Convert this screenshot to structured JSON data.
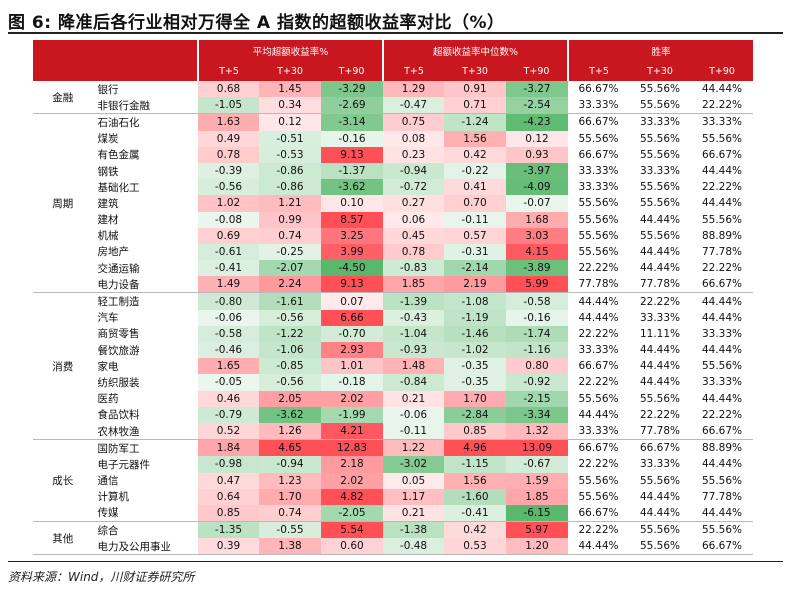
{
  "title": "图 6:   降准后各行业相对万得全 A 指数的超额收益率对比（%）",
  "source": "资料来源：Wind，川财证券研究所",
  "headers": {
    "group1": "平均超额收益率%",
    "group2": "超额收益率中位数%",
    "group3": "胜率",
    "periods": [
      "T+5",
      "T+30",
      "T+90"
    ]
  },
  "colors": {
    "header_red": "#c8171e",
    "positive_red": "#e8343c",
    "negative_green": "#3aa655"
  },
  "groups": [
    {
      "name": "金融",
      "rows": [
        {
          "industry": "银行",
          "avg": [
            "0.68",
            "1.45",
            "-3.29"
          ],
          "med": [
            "1.29",
            "0.91",
            "-3.27"
          ],
          "win": [
            "66.67%",
            "55.56%",
            "44.44%"
          ]
        },
        {
          "industry": "非银行金融",
          "avg": [
            "-1.05",
            "0.34",
            "-2.69"
          ],
          "med": [
            "-0.47",
            "0.71",
            "-2.54"
          ],
          "win": [
            "33.33%",
            "55.56%",
            "22.22%"
          ]
        }
      ]
    },
    {
      "name": "周期",
      "rows": [
        {
          "industry": "石油石化",
          "avg": [
            "1.63",
            "0.12",
            "-3.14"
          ],
          "med": [
            "0.75",
            "-1.24",
            "-4.23"
          ],
          "win": [
            "66.67%",
            "33.33%",
            "33.33%"
          ]
        },
        {
          "industry": "煤炭",
          "avg": [
            "0.49",
            "-0.51",
            "-0.16"
          ],
          "med": [
            "0.08",
            "1.56",
            "0.12"
          ],
          "win": [
            "55.56%",
            "55.56%",
            "55.56%"
          ]
        },
        {
          "industry": "有色金属",
          "avg": [
            "0.78",
            "-0.53",
            "9.13"
          ],
          "med": [
            "0.23",
            "0.42",
            "0.93"
          ],
          "win": [
            "66.67%",
            "55.56%",
            "66.67%"
          ]
        },
        {
          "industry": "钢铁",
          "avg": [
            "-0.39",
            "-0.86",
            "-1.37"
          ],
          "med": [
            "-0.94",
            "-0.22",
            "-3.97"
          ],
          "win": [
            "33.33%",
            "33.33%",
            "44.44%"
          ]
        },
        {
          "industry": "基础化工",
          "avg": [
            "-0.56",
            "-0.86",
            "-3.62"
          ],
          "med": [
            "-0.72",
            "0.41",
            "-4.09"
          ],
          "win": [
            "33.33%",
            "55.56%",
            "22.22%"
          ]
        },
        {
          "industry": "建筑",
          "avg": [
            "1.02",
            "1.21",
            "0.10"
          ],
          "med": [
            "0.27",
            "0.70",
            "-0.07"
          ],
          "win": [
            "55.56%",
            "55.56%",
            "44.44%"
          ]
        },
        {
          "industry": "建材",
          "avg": [
            "-0.08",
            "0.99",
            "8.57"
          ],
          "med": [
            "0.06",
            "-0.11",
            "1.68"
          ],
          "win": [
            "55.56%",
            "44.44%",
            "55.56%"
          ]
        },
        {
          "industry": "机械",
          "avg": [
            "0.69",
            "0.74",
            "3.25"
          ],
          "med": [
            "0.45",
            "0.57",
            "3.03"
          ],
          "win": [
            "55.56%",
            "55.56%",
            "88.89%"
          ]
        },
        {
          "industry": "房地产",
          "avg": [
            "-0.61",
            "-0.25",
            "3.99"
          ],
          "med": [
            "0.78",
            "-0.31",
            "4.15"
          ],
          "win": [
            "55.56%",
            "44.44%",
            "77.78%"
          ]
        },
        {
          "industry": "交通运输",
          "avg": [
            "-0.41",
            "-2.07",
            "-4.50"
          ],
          "med": [
            "-0.83",
            "-2.14",
            "-3.89"
          ],
          "win": [
            "22.22%",
            "44.44%",
            "22.22%"
          ]
        },
        {
          "industry": "电力设备",
          "avg": [
            "1.49",
            "2.24",
            "9.13"
          ],
          "med": [
            "1.85",
            "2.19",
            "5.99"
          ],
          "win": [
            "77.78%",
            "77.78%",
            "66.67%"
          ]
        }
      ]
    },
    {
      "name": "消费",
      "rows": [
        {
          "industry": "轻工制造",
          "avg": [
            "-0.80",
            "-1.61",
            "0.07"
          ],
          "med": [
            "-1.39",
            "-1.08",
            "-0.58"
          ],
          "win": [
            "44.44%",
            "22.22%",
            "44.44%"
          ]
        },
        {
          "industry": "汽车",
          "avg": [
            "-0.06",
            "-0.56",
            "6.66"
          ],
          "med": [
            "-0.43",
            "-1.19",
            "-0.16"
          ],
          "win": [
            "44.44%",
            "33.33%",
            "44.44%"
          ]
        },
        {
          "industry": "商贸零售",
          "avg": [
            "-0.58",
            "-1.22",
            "-0.70"
          ],
          "med": [
            "-1.04",
            "-1.46",
            "-1.74"
          ],
          "win": [
            "22.22%",
            "11.11%",
            "33.33%"
          ]
        },
        {
          "industry": "餐饮旅游",
          "avg": [
            "-0.46",
            "-1.06",
            "2.93"
          ],
          "med": [
            "-0.93",
            "-1.02",
            "-1.16"
          ],
          "win": [
            "33.33%",
            "44.44%",
            "44.44%"
          ]
        },
        {
          "industry": "家电",
          "avg": [
            "1.65",
            "-0.85",
            "1.01"
          ],
          "med": [
            "1.48",
            "-0.35",
            "0.80"
          ],
          "win": [
            "66.67%",
            "44.44%",
            "55.56%"
          ]
        },
        {
          "industry": "纺织服装",
          "avg": [
            "-0.05",
            "-0.56",
            "-0.18"
          ],
          "med": [
            "-0.84",
            "-0.35",
            "-0.92"
          ],
          "win": [
            "22.22%",
            "44.44%",
            "33.33%"
          ]
        },
        {
          "industry": "医药",
          "avg": [
            "0.46",
            "2.05",
            "2.02"
          ],
          "med": [
            "0.21",
            "1.70",
            "-2.15"
          ],
          "win": [
            "55.56%",
            "55.56%",
            "44.44%"
          ]
        },
        {
          "industry": "食品饮料",
          "avg": [
            "-0.79",
            "-3.62",
            "-1.99"
          ],
          "med": [
            "-0.06",
            "-2.84",
            "-3.34"
          ],
          "win": [
            "44.44%",
            "22.22%",
            "22.22%"
          ]
        },
        {
          "industry": "农林牧渔",
          "avg": [
            "0.52",
            "1.26",
            "4.21"
          ],
          "med": [
            "-0.11",
            "0.85",
            "1.32"
          ],
          "win": [
            "33.33%",
            "77.78%",
            "66.67%"
          ]
        }
      ]
    },
    {
      "name": "成长",
      "rows": [
        {
          "industry": "国防军工",
          "avg": [
            "1.84",
            "4.65",
            "12.83"
          ],
          "med": [
            "1.22",
            "4.96",
            "13.09"
          ],
          "win": [
            "66.67%",
            "66.67%",
            "88.89%"
          ]
        },
        {
          "industry": "电子元器件",
          "avg": [
            "-0.98",
            "-0.94",
            "2.18"
          ],
          "med": [
            "-3.02",
            "-1.15",
            "-0.67"
          ],
          "win": [
            "22.22%",
            "33.33%",
            "44.44%"
          ]
        },
        {
          "industry": "通信",
          "avg": [
            "0.47",
            "1.23",
            "2.02"
          ],
          "med": [
            "0.05",
            "1.56",
            "1.59"
          ],
          "win": [
            "55.56%",
            "55.56%",
            "55.56%"
          ]
        },
        {
          "industry": "计算机",
          "avg": [
            "0.64",
            "1.70",
            "4.82"
          ],
          "med": [
            "1.17",
            "-1.60",
            "1.85"
          ],
          "win": [
            "55.56%",
            "44.44%",
            "77.78%"
          ]
        },
        {
          "industry": "传媒",
          "avg": [
            "0.85",
            "0.74",
            "-2.05"
          ],
          "med": [
            "0.21",
            "-0.41",
            "-6.15"
          ],
          "win": [
            "66.67%",
            "44.44%",
            "44.44%"
          ]
        }
      ]
    },
    {
      "name": "其他",
      "rows": [
        {
          "industry": "综合",
          "avg": [
            "-1.35",
            "-0.55",
            "5.54"
          ],
          "med": [
            "-1.38",
            "0.42",
            "5.97"
          ],
          "win": [
            "22.22%",
            "55.56%",
            "55.56%"
          ]
        },
        {
          "industry": "电力及公用事业",
          "avg": [
            "0.39",
            "1.38",
            "0.60"
          ],
          "med": [
            "-0.48",
            "0.53",
            "1.20"
          ],
          "win": [
            "44.44%",
            "55.56%",
            "66.67%"
          ]
        }
      ]
    }
  ]
}
